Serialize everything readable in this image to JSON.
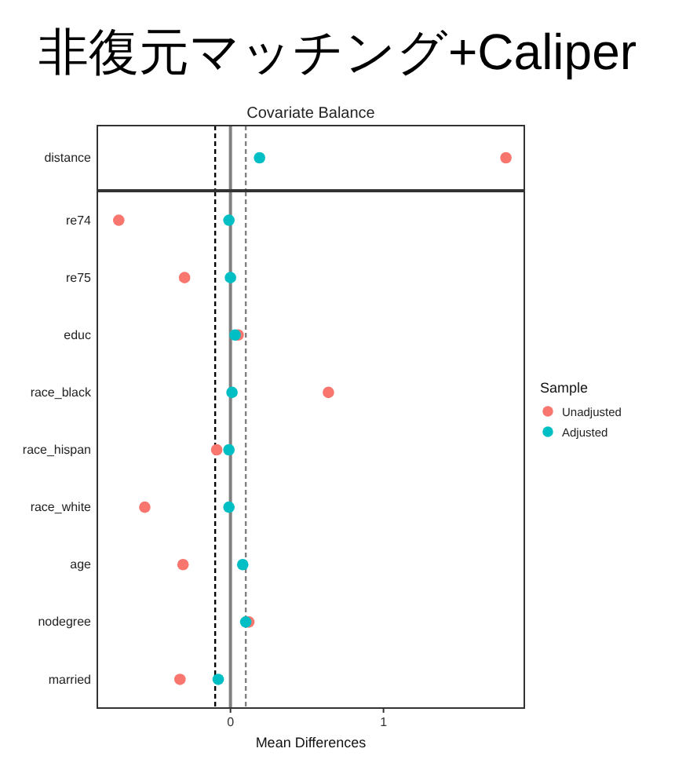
{
  "chart_data": [
    {
      "type": "scatter",
      "title": "非復元マッチング+Caliper",
      "subtitle": "Covariate Balance",
      "orientation": "horizontal",
      "categories": [
        "distance"
      ],
      "series": [
        {
          "color": "#f8766d",
          "values": [
            1.8
          ]
        },
        {
          "color": "#00bfc4",
          "values": [
            0.19
          ]
        }
      ],
      "xlim": [
        -0.87,
        1.92
      ],
      "tick_labels": "y",
      "marker": "circle",
      "legend": false,
      "ref_lines": [
        {
          "axis": "x",
          "value": 0,
          "color": "#808080",
          "line_style": "solid"
        },
        {
          "axis": "x",
          "value": -0.1,
          "color": "#000000",
          "line_style": "dashed"
        },
        {
          "axis": "x",
          "value": 0.1,
          "color": "#808080",
          "line_style": "dashed"
        }
      ]
    },
    {
      "type": "scatter",
      "orientation": "horizontal",
      "xlabel": "Mean Differences",
      "legend_title": "Sample",
      "categories": [
        "re74",
        "re75",
        "educ",
        "race_black",
        "race_hispan",
        "race_white",
        "age",
        "nodegree",
        "married"
      ],
      "series": [
        {
          "name": "Unadjusted",
          "color": "#f8766d",
          "values": [
            -0.73,
            -0.3,
            0.05,
            0.64,
            -0.09,
            -0.56,
            -0.31,
            0.12,
            -0.33
          ]
        },
        {
          "name": "Adjusted",
          "color": "#00bfc4",
          "values": [
            -0.01,
            0.0,
            0.03,
            0.01,
            -0.01,
            -0.01,
            0.08,
            0.1,
            -0.08
          ]
        }
      ],
      "xlim": [
        -0.87,
        1.92
      ],
      "xticks": [
        0,
        1
      ],
      "marker": "circle",
      "legend": "right",
      "ref_lines": [
        {
          "axis": "x",
          "value": 0,
          "color": "#808080",
          "line_style": "solid"
        },
        {
          "axis": "x",
          "value": -0.1,
          "color": "#000000",
          "line_style": "dashed"
        },
        {
          "axis": "x",
          "value": 0.1,
          "color": "#808080",
          "line_style": "dashed"
        }
      ]
    }
  ]
}
